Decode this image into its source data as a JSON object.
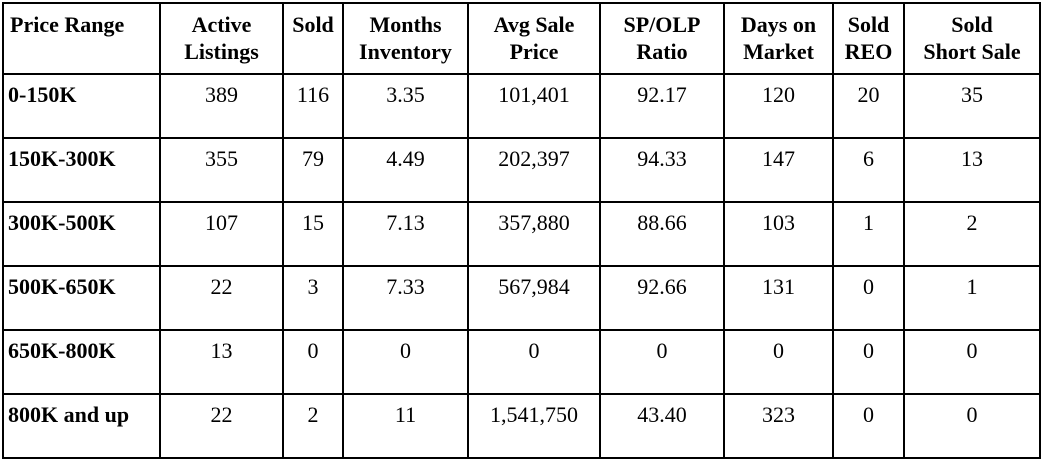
{
  "table": {
    "headers": [
      [
        "Price Range"
      ],
      [
        "Active",
        "Listings"
      ],
      [
        "Sold"
      ],
      [
        "Months",
        "Inventory"
      ],
      [
        "Avg Sale",
        "Price"
      ],
      [
        "SP/OLP",
        "Ratio"
      ],
      [
        "Days on",
        "Market"
      ],
      [
        "Sold",
        "REO"
      ],
      [
        "Sold",
        "Short Sale"
      ]
    ],
    "rows": [
      [
        "0-150K",
        "389",
        "116",
        "3.35",
        "101,401",
        "92.17",
        "120",
        "20",
        "35"
      ],
      [
        "150K-300K",
        "355",
        "79",
        "4.49",
        "202,397",
        "94.33",
        "147",
        "6",
        "13"
      ],
      [
        "300K-500K",
        "107",
        "15",
        "7.13",
        "357,880",
        "88.66",
        "103",
        "1",
        "2"
      ],
      [
        "500K-650K",
        "22",
        "3",
        "7.33",
        "567,984",
        "92.66",
        "131",
        "0",
        "1"
      ],
      [
        "650K-800K",
        "13",
        "0",
        "0",
        "0",
        "0",
        "0",
        "0",
        "0"
      ],
      [
        "800K and up",
        "22",
        "2",
        "11",
        "1,541,750",
        "43.40",
        "323",
        "0",
        "0"
      ]
    ]
  }
}
